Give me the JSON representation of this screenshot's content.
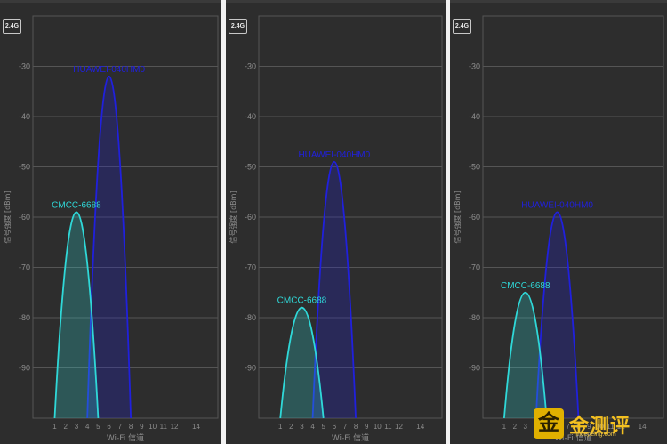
{
  "y_axis_label": "信号强度 [dBm]",
  "x_axis_label": "Wi-Fi 信道",
  "colors": {
    "background": "#2d2d2d",
    "grid": "#555555",
    "axis_text": "#8e8e8e",
    "network_a": "#2020dd",
    "network_b": "#2fd8d8",
    "watermark": "#f4c020"
  },
  "panels": [
    {
      "band": "2.4G",
      "chart_data": {
        "type": "area",
        "ylabel": "信号强度 [dBm]",
        "xlabel": "Wi-Fi 信道",
        "y_ticks": [
          "-30",
          "-40",
          "-50",
          "-60",
          "-70",
          "-80",
          "-90"
        ],
        "x_ticks": [
          "1",
          "2",
          "3",
          "4",
          "5",
          "6",
          "7",
          "8",
          "9",
          "10",
          "11",
          "12",
          "14"
        ],
        "ylim": [
          -100,
          -20
        ],
        "xlim": [
          -1,
          16
        ],
        "series": [
          {
            "name": "HUAWEI-040HM0",
            "channel": 6,
            "peak_dbm": -32,
            "color": "#2020dd"
          },
          {
            "name": "CMCC-6688",
            "channel": 3,
            "peak_dbm": -59,
            "color": "#2fd8d8"
          }
        ]
      }
    },
    {
      "band": "2.4G",
      "chart_data": {
        "type": "area",
        "ylabel": "信号强度 [dBm]",
        "xlabel": "Wi-Fi 信道",
        "y_ticks": [
          "-30",
          "-40",
          "-50",
          "-60",
          "-70",
          "-80",
          "-90"
        ],
        "x_ticks": [
          "1",
          "2",
          "3",
          "4",
          "5",
          "6",
          "7",
          "8",
          "9",
          "10",
          "11",
          "12",
          "14"
        ],
        "ylim": [
          -100,
          -20
        ],
        "xlim": [
          -1,
          16
        ],
        "series": [
          {
            "name": "HUAWEI-040HM0",
            "channel": 6,
            "peak_dbm": -49,
            "color": "#2020dd"
          },
          {
            "name": "CMCC-6688",
            "channel": 3,
            "peak_dbm": -78,
            "color": "#2fd8d8"
          }
        ]
      }
    },
    {
      "band": "2.4G",
      "chart_data": {
        "type": "area",
        "ylabel": "信号强度 [dBm]",
        "xlabel": "Wi-Fi 信道",
        "y_ticks": [
          "-30",
          "-40",
          "-50",
          "-60",
          "-70",
          "-80",
          "-90"
        ],
        "x_ticks": [
          "1",
          "2",
          "3",
          "4",
          "5",
          "6",
          "7",
          "8",
          "9",
          "10",
          "11",
          "12",
          "14"
        ],
        "ylim": [
          -100,
          -20
        ],
        "xlim": [
          -1,
          16
        ],
        "series": [
          {
            "name": "HUAWEI-040HM0",
            "channel": 6,
            "peak_dbm": -59,
            "color": "#2020dd"
          },
          {
            "name": "CMCC-6688",
            "channel": 3,
            "peak_dbm": -75,
            "color": "#2fd8d8"
          }
        ]
      }
    }
  ],
  "watermark": {
    "logo_char": "金",
    "name": "金测评",
    "url": "jincepeing.com"
  }
}
